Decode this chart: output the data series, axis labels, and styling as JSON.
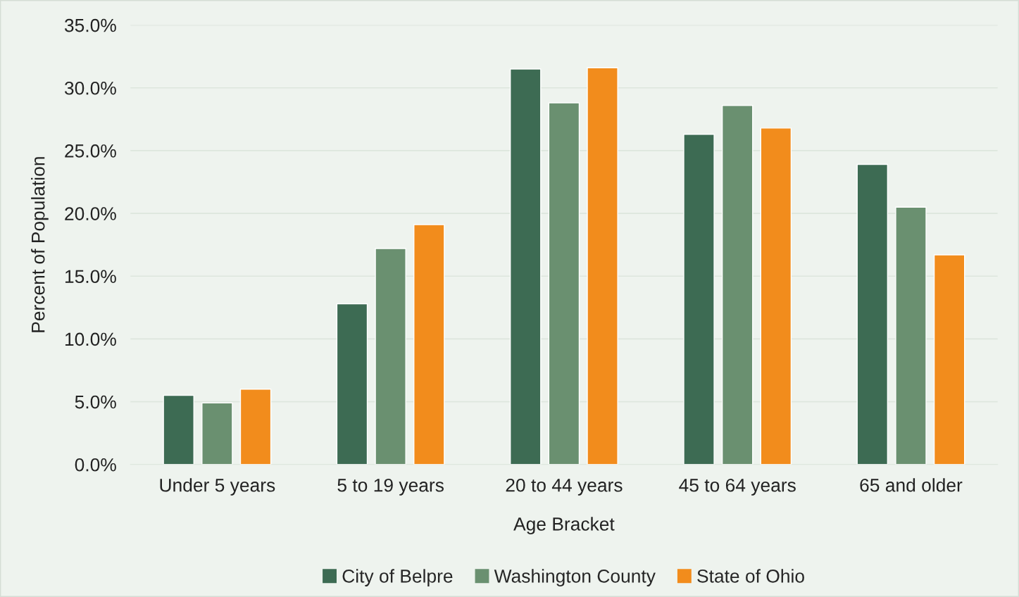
{
  "chart_data": {
    "type": "bar",
    "xlabel": "Age Bracket",
    "ylabel": "Percent of Population",
    "categories": [
      "Under 5 years",
      "5 to 19 years",
      "20 to 44 years",
      "45 to 64 years",
      "65 and older"
    ],
    "series": [
      {
        "name": "City of Belpre",
        "color": "#3d6b53",
        "values": [
          5.5,
          12.8,
          31.5,
          26.3,
          23.9
        ]
      },
      {
        "name": "Washington County",
        "color": "#6a9070",
        "values": [
          4.9,
          17.2,
          28.8,
          28.6,
          20.5
        ]
      },
      {
        "name": "State of Ohio",
        "color": "#f28c1c",
        "values": [
          6.0,
          19.1,
          31.6,
          26.8,
          16.7
        ]
      }
    ],
    "ylim": [
      0,
      35
    ],
    "yticks": [
      {
        "value": 0,
        "label": "0.0%"
      },
      {
        "value": 5,
        "label": "5.0%"
      },
      {
        "value": 10,
        "label": "10.0%"
      },
      {
        "value": 15,
        "label": "15.0%"
      },
      {
        "value": 20,
        "label": "20.0%"
      },
      {
        "value": 25,
        "label": "25.0%"
      },
      {
        "value": 30,
        "label": "30.0%"
      },
      {
        "value": 35,
        "label": "35.0%"
      }
    ],
    "grid": "y",
    "legend": "bottom"
  }
}
